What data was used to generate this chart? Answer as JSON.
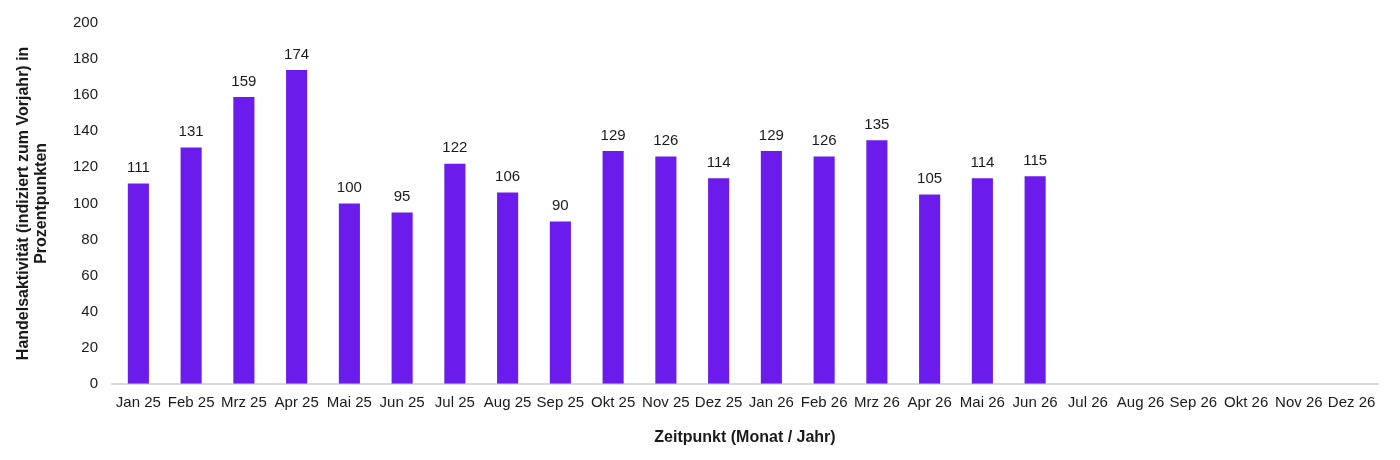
{
  "chart_data": {
    "type": "bar",
    "xlabel": "Zeitpunkt (Monat / Jahr)",
    "ylabel": "Handelsaktivität (indiziert zum Vorjahr) in Prozentpunkten",
    "categories": [
      "Jan 25",
      "Feb 25",
      "Mrz 25",
      "Apr 25",
      "Mai 25",
      "Jun 25",
      "Jul 25",
      "Aug 25",
      "Sep 25",
      "Okt 25",
      "Nov 25",
      "Dez 25",
      "Jan 26",
      "Feb 26",
      "Mrz 26",
      "Apr 26",
      "Mai 26",
      "Jun 26",
      "Jul 26",
      "Aug 26",
      "Sep 26",
      "Okt 26",
      "Nov 26",
      "Dez 26"
    ],
    "values": [
      111,
      131,
      159,
      174,
      100,
      95,
      122,
      106,
      90,
      129,
      126,
      114,
      129,
      126,
      135,
      105,
      114,
      115,
      null,
      null,
      null,
      null,
      null,
      null
    ],
    "color": "#6b1ced",
    "ylim": [
      0,
      200
    ],
    "yticks": [
      0,
      20,
      40,
      60,
      80,
      100,
      120,
      140,
      160,
      180,
      200
    ],
    "data_labels": true,
    "legend": false
  }
}
